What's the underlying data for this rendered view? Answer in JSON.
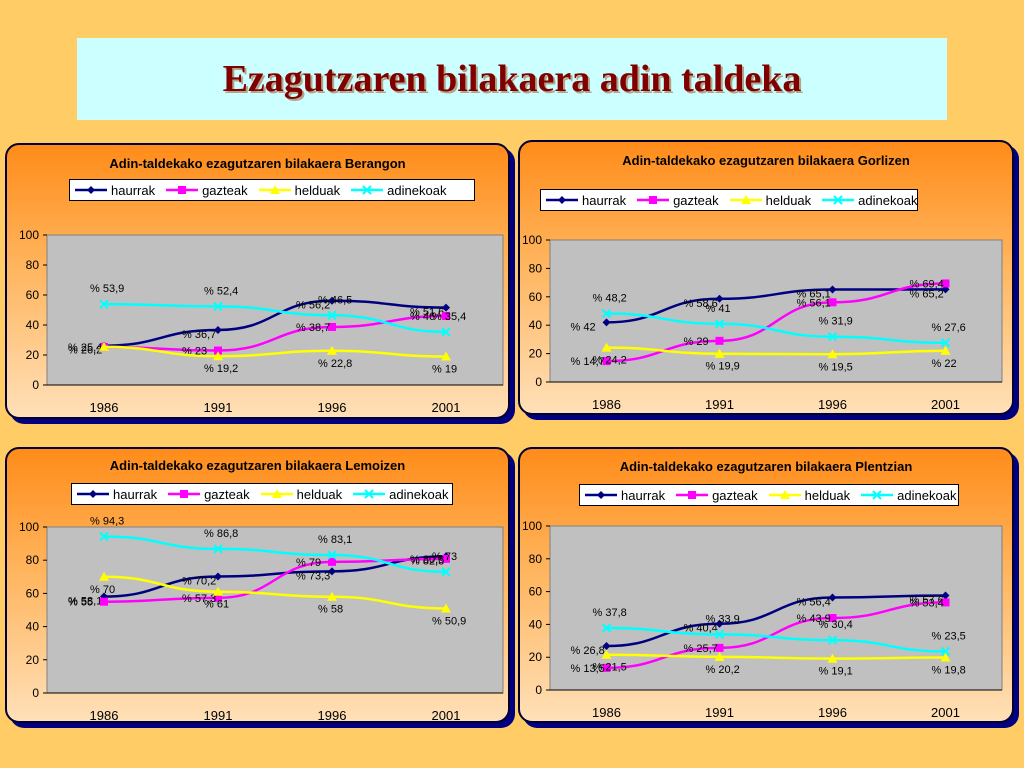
{
  "slide": {
    "title": "Ezagutzaren bilakaera adin taldeka"
  },
  "legend_labels": [
    "haurrak",
    "gazteak",
    "helduak",
    "adinekoak"
  ],
  "series_colors": {
    "haurrak": "#000080",
    "gazteak": "#ff00ff",
    "helduak": "#ffff00",
    "adinekoak": "#00ffff"
  },
  "chart_data": [
    {
      "type": "line",
      "title": "Adin-taldekako ezagutzaren bilakaera Berangon",
      "categories": [
        "1986",
        "1991",
        "1996",
        "2001"
      ],
      "yticks": [
        "0",
        "20",
        "40",
        "60",
        "80",
        "100"
      ],
      "ylim": [
        0,
        100
      ],
      "value_prefix": "% ",
      "series": [
        {
          "name": "haurrak",
          "values": [
            26.2,
            36.7,
            56.2,
            51.6
          ],
          "labels": [
            "26,2",
            "36,7",
            "56,2",
            "51,6"
          ]
        },
        {
          "name": "gazteak",
          "values": [
            25.4,
            23,
            38.7,
            46
          ],
          "labels": [
            "25,4",
            "23",
            "38,7",
            "46"
          ]
        },
        {
          "name": "helduak",
          "values": [
            25.4,
            19.2,
            22.8,
            19
          ],
          "labels": [
            "",
            "19,2",
            "22,8",
            "19"
          ]
        },
        {
          "name": "adinekoak",
          "values": [
            53.9,
            52.4,
            46.5,
            35.4
          ],
          "labels": [
            "53,9",
            "52,4",
            "46,5",
            "35,4"
          ]
        }
      ]
    },
    {
      "type": "line",
      "title": "Adin-taldekako ezagutzaren bilakaera Gorlizen",
      "categories": [
        "1986",
        "1991",
        "1996",
        "2001"
      ],
      "yticks": [
        "0",
        "20",
        "40",
        "60",
        "80",
        "100"
      ],
      "ylim": [
        0,
        100
      ],
      "value_prefix": "% ",
      "series": [
        {
          "name": "haurrak",
          "values": [
            42,
            58.6,
            65.1,
            65.2
          ],
          "labels": [
            "42",
            "58,6",
            "65,1",
            "65,2"
          ]
        },
        {
          "name": "gazteak",
          "values": [
            14.7,
            29,
            56.1,
            69.4
          ],
          "labels": [
            "14,7",
            "29",
            "56,1",
            "69,4"
          ]
        },
        {
          "name": "helduak",
          "values": [
            24.2,
            19.9,
            19.5,
            22
          ],
          "labels": [
            "24,2",
            "19,9",
            "19,5",
            "22"
          ]
        },
        {
          "name": "adinekoak",
          "values": [
            48.2,
            41,
            31.9,
            27.6
          ],
          "labels": [
            "48,2",
            "41",
            "31,9",
            "27,6"
          ]
        }
      ]
    },
    {
      "type": "line",
      "title": "Adin-taldekako ezagutzaren bilakaera Lemoizen",
      "categories": [
        "1986",
        "1991",
        "1996",
        "2001"
      ],
      "yticks": [
        "0",
        "20",
        "40",
        "60",
        "80",
        "100"
      ],
      "ylim": [
        0,
        100
      ],
      "value_prefix": "% ",
      "series": [
        {
          "name": "haurrak",
          "values": [
            58.1,
            70.2,
            73.3,
            82.3
          ],
          "labels": [
            "58,1",
            "70,2",
            "73,3",
            "82,3"
          ]
        },
        {
          "name": "gazteak",
          "values": [
            55,
            57.3,
            79,
            80.8
          ],
          "labels": [
            "55",
            "57,3",
            "79",
            "80,8"
          ]
        },
        {
          "name": "helduak",
          "values": [
            70,
            61,
            58,
            50.9
          ],
          "labels": [
            "70",
            "61",
            "58",
            "50,9"
          ]
        },
        {
          "name": "adinekoak",
          "values": [
            94.3,
            86.8,
            83.1,
            73
          ],
          "labels": [
            "94,3",
            "86,8",
            "83,1",
            "73"
          ]
        }
      ]
    },
    {
      "type": "line",
      "title": "Adin-taldekako ezagutzaren bilakaera Plentzian",
      "categories": [
        "1986",
        "1991",
        "1996",
        "2001"
      ],
      "yticks": [
        "0",
        "20",
        "40",
        "60",
        "80",
        "100"
      ],
      "ylim": [
        0,
        100
      ],
      "value_prefix": "% ",
      "series": [
        {
          "name": "haurrak",
          "values": [
            26.8,
            40.4,
            56.4,
            57.6
          ],
          "labels": [
            "26,8",
            "40,4",
            "56,4",
            "57,6"
          ]
        },
        {
          "name": "gazteak",
          "values": [
            13.5,
            25.7,
            43.9,
            53.4
          ],
          "labels": [
            "13,5",
            "25,7",
            "43,9",
            "53,4"
          ]
        },
        {
          "name": "helduak",
          "values": [
            21.5,
            20.2,
            19.1,
            19.8
          ],
          "labels": [
            "21,5",
            "20,2",
            "19,1",
            "19,8"
          ]
        },
        {
          "name": "adinekoak",
          "values": [
            37.8,
            33.9,
            30.4,
            23.5
          ],
          "labels": [
            "37,8",
            "33,9",
            "30,4",
            "23,5"
          ]
        }
      ]
    }
  ]
}
